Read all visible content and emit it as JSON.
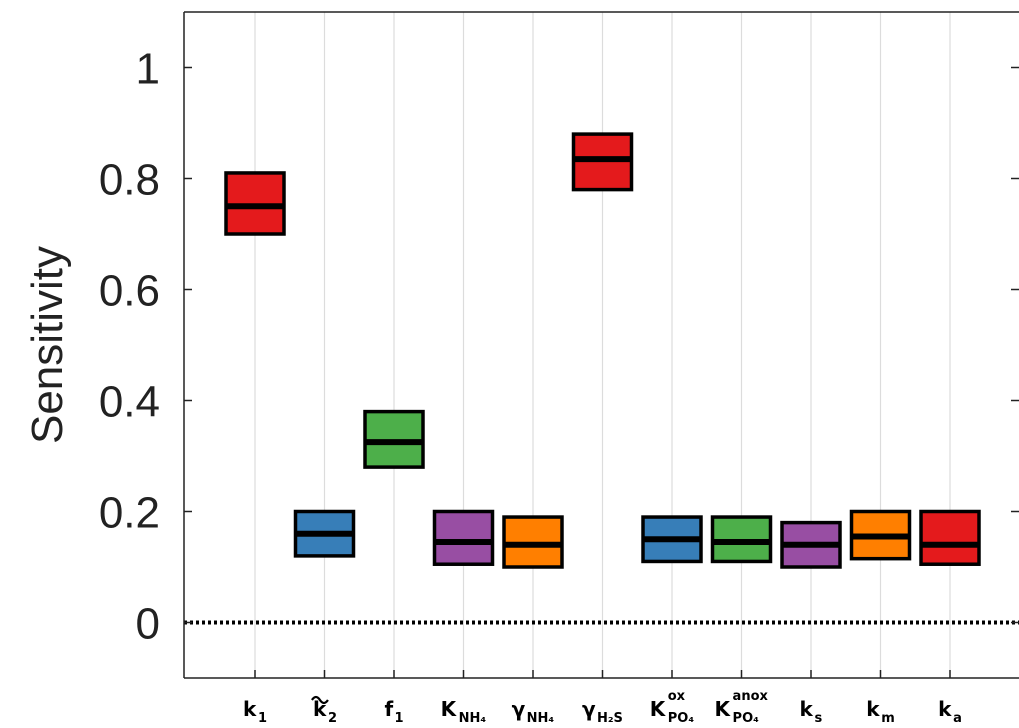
{
  "chart_data": {
    "type": "box",
    "ylabel": "Sensitivity",
    "ylim": [
      -0.1,
      1.1
    ],
    "yticks": [
      0,
      0.2,
      0.4,
      0.6,
      0.8,
      1
    ],
    "ytick_labels": [
      "0",
      "0.2",
      "0.4",
      "0.6",
      "0.8",
      "1"
    ],
    "grid": "vertical",
    "reference_line": {
      "y": 0,
      "style": "dotted"
    },
    "categories": [
      {
        "label": "k",
        "sub": "1",
        "sup": "",
        "tilde": false,
        "box": [
          0.7,
          0.81
        ],
        "median": 0.75,
        "color": "#e41a1c"
      },
      {
        "label": "k",
        "sub": "2",
        "sup": "",
        "tilde": true,
        "box": [
          0.12,
          0.2
        ],
        "median": 0.16,
        "color": "#377eb8"
      },
      {
        "label": "f",
        "sub": "1",
        "sup": "",
        "tilde": false,
        "box": [
          0.28,
          0.38
        ],
        "median": 0.325,
        "color": "#4daf4a"
      },
      {
        "label": "K",
        "sub": "NH₄",
        "sup": "",
        "tilde": false,
        "box": [
          0.105,
          0.2
        ],
        "median": 0.145,
        "color": "#984ea3"
      },
      {
        "label": "γ",
        "sub": "NH₄",
        "sup": "",
        "tilde": false,
        "box": [
          0.1,
          0.19
        ],
        "median": 0.14,
        "color": "#ff7f00"
      },
      {
        "label": "γ",
        "sub": "H₂S",
        "sup": "",
        "tilde": false,
        "box": [
          0.78,
          0.88
        ],
        "median": 0.835,
        "color": "#e41a1c"
      },
      {
        "label": "K",
        "sub": "PO₄",
        "sup": "ox",
        "tilde": false,
        "box": [
          0.11,
          0.19
        ],
        "median": 0.15,
        "color": "#377eb8"
      },
      {
        "label": "K",
        "sub": "PO₄",
        "sup": "anox",
        "tilde": false,
        "box": [
          0.11,
          0.19
        ],
        "median": 0.145,
        "color": "#4daf4a"
      },
      {
        "label": "k",
        "sub": "s",
        "sup": "",
        "tilde": false,
        "box": [
          0.1,
          0.18
        ],
        "median": 0.14,
        "color": "#984ea3"
      },
      {
        "label": "k",
        "sub": "m",
        "sup": "",
        "tilde": false,
        "box": [
          0.115,
          0.2
        ],
        "median": 0.155,
        "color": "#ff7f00"
      },
      {
        "label": "k",
        "sub": "a",
        "sup": "",
        "tilde": false,
        "box": [
          0.105,
          0.2
        ],
        "median": 0.14,
        "color": "#e41a1c"
      }
    ]
  }
}
